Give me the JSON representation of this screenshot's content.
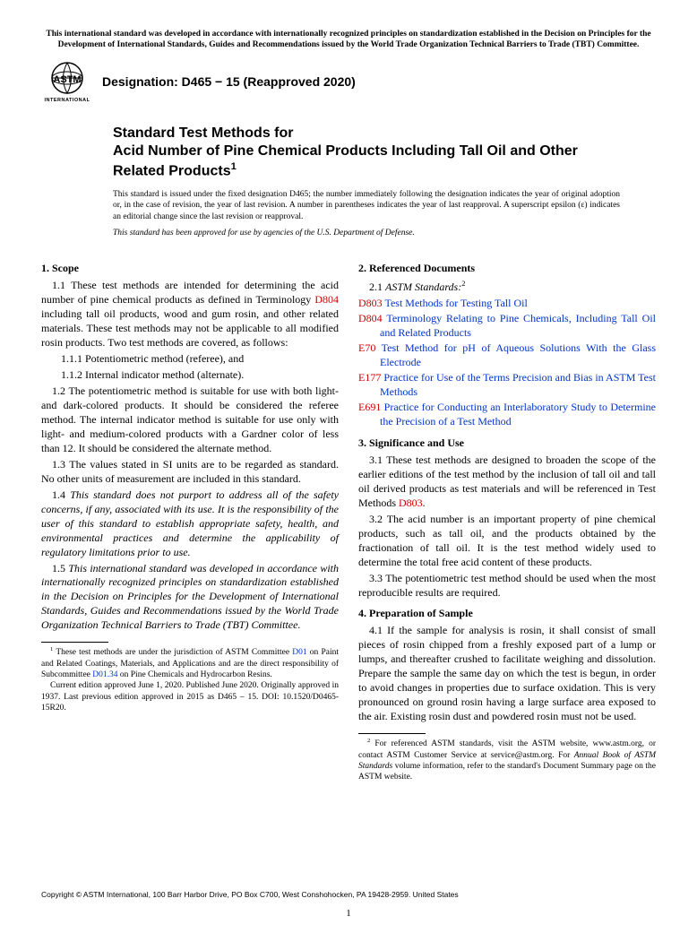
{
  "top_note": "This international standard was developed in accordance with internationally recognized principles on standardization established in the Decision on Principles for the Development of International Standards, Guides and Recommendations issued by the World Trade Organization Technical Barriers to Trade (TBT) Committee.",
  "logo": {
    "label_top": "ASTM",
    "label_bottom": "INTERNATIONAL"
  },
  "designation_prefix": "Designation: ",
  "designation_code": "D465 − 15 (Reapproved 2020)",
  "title_line1": "Standard Test Methods for",
  "title_line2": "Acid Number of Pine Chemical Products Including Tall Oil and Other Related Products",
  "title_sup": "1",
  "issued_note": "This standard is issued under the fixed designation D465; the number immediately following the designation indicates the year of original adoption or, in the case of revision, the year of last revision. A number in parentheses indicates the year of last reapproval. A superscript epsilon (ε) indicates an editorial change since the last revision or reapproval.",
  "dod_note": "This standard has been approved for use by agencies of the U.S. Department of Defense.",
  "left": {
    "s1_head": "1.  Scope",
    "p11a": "1.1  These test methods are intended for determining the acid number of pine chemical products as defined in Terminology ",
    "p11_link": "D804",
    "p11b": " including tall oil products, wood and gum rosin, and other related materials. These test methods may not be applicable to all modified rosin products. Two test methods are covered, as follows:",
    "p111": "1.1.1  Potentiometric method (referee), and",
    "p112": "1.1.2  Internal indicator method (alternate).",
    "p12": "1.2  The potentiometric method is suitable for use with both light- and dark-colored products. It should be considered the referee method. The internal indicator method is suitable for use only with light- and medium-colored products with a Gardner color of less than 12. It should be considered the alternate method.",
    "p13": "1.3  The values stated in SI units are to be regarded as standard. No other units of measurement are included in this standard.",
    "p14_num": "1.4  ",
    "p14": "This standard does not purport to address all of the safety concerns, if any, associated with its use. It is the responsibility of the user of this standard to establish appropriate safety, health, and environmental practices and determine the applicability of regulatory limitations prior to use.",
    "p15_num": "1.5  ",
    "p15": "This international standard was developed in accordance with internationally recognized principles on standardization established in the Decision on Principles for the Development of International Standards, Guides and Recommendations issued by the World Trade Organization Technical Barriers to Trade (TBT) Committee.",
    "fn1_a": " These test methods are under the jurisdiction of ASTM Committee ",
    "fn1_link1": "D01",
    "fn1_b": " on Paint and Related Coatings, Materials, and Applications and are the direct responsibility of Subcommittee ",
    "fn1_link2": "D01.34",
    "fn1_c": " on Pine Chemicals and Hydrocarbon Resins.",
    "fn1_d": "Current edition approved June 1, 2020. Published June 2020. Originally approved in 1937. Last previous edition approved in 2015 as D465 – 15. DOI: 10.1520/D0465-15R20."
  },
  "right": {
    "s2_head": "2.  Referenced Documents",
    "p21_num": "2.1  ",
    "p21": "ASTM Standards:",
    "p21_sup": "2",
    "refs": [
      {
        "code": "D803",
        "title": " Test Methods for Testing Tall Oil"
      },
      {
        "code": "D804",
        "title": " Terminology Relating to Pine Chemicals, Including Tall Oil and Related Products"
      },
      {
        "code": "E70",
        "title": " Test Method for pH of Aqueous Solutions With the Glass Electrode"
      },
      {
        "code": "E177",
        "title": " Practice for Use of the Terms Precision and Bias in ASTM Test Methods"
      },
      {
        "code": "E691",
        "title": " Practice for Conducting an Interlaboratory Study to Determine the Precision of a Test Method"
      }
    ],
    "s3_head": "3.  Significance and Use",
    "p31a": "3.1  These test methods are designed to broaden the scope of the earlier editions of the test method by the inclusion of tall oil and tall oil derived products as test materials and will be referenced in Test Methods ",
    "p31_link": "D803",
    "p31b": ".",
    "p32": "3.2  The acid number is an important property of pine chemical products, such as tall oil, and the products obtained by the fractionation of tall oil. It is the test method widely used to determine the total free acid content of these products.",
    "p33": "3.3  The potentiometric test method should be used when the most reproducible results are required.",
    "s4_head": "4.  Preparation of Sample",
    "p41": "4.1  If the sample for analysis is rosin, it shall consist of small pieces of rosin chipped from a freshly exposed part of a lump or lumps, and thereafter crushed to facilitate weighing and dissolution. Prepare the sample the same day on which the test is begun, in order to avoid changes in properties due to surface oxidation. This is very pronounced on ground rosin having a large surface area exposed to the air. Existing rosin dust and powdered rosin must not be used.",
    "fn2_a": " For referenced ASTM standards, visit the ASTM website, www.astm.org, or contact ASTM Customer Service at service@astm.org. For ",
    "fn2_i": "Annual Book of ASTM Standards",
    "fn2_b": " volume information, refer to the standard's Document Summary page on the ASTM website."
  },
  "copyright": "Copyright © ASTM International, 100 Barr Harbor Drive, PO Box C700, West Conshohocken, PA 19428-2959. United States",
  "page_number": "1",
  "colors": {
    "link_red": "#cc0000",
    "link_blue": "#0033cc",
    "text": "#000000",
    "background": "#ffffff"
  },
  "typography": {
    "body_family": "Times New Roman",
    "heading_family": "Arial",
    "body_size_pt": 10,
    "title_size_pt": 13,
    "footnote_size_pt": 8
  }
}
